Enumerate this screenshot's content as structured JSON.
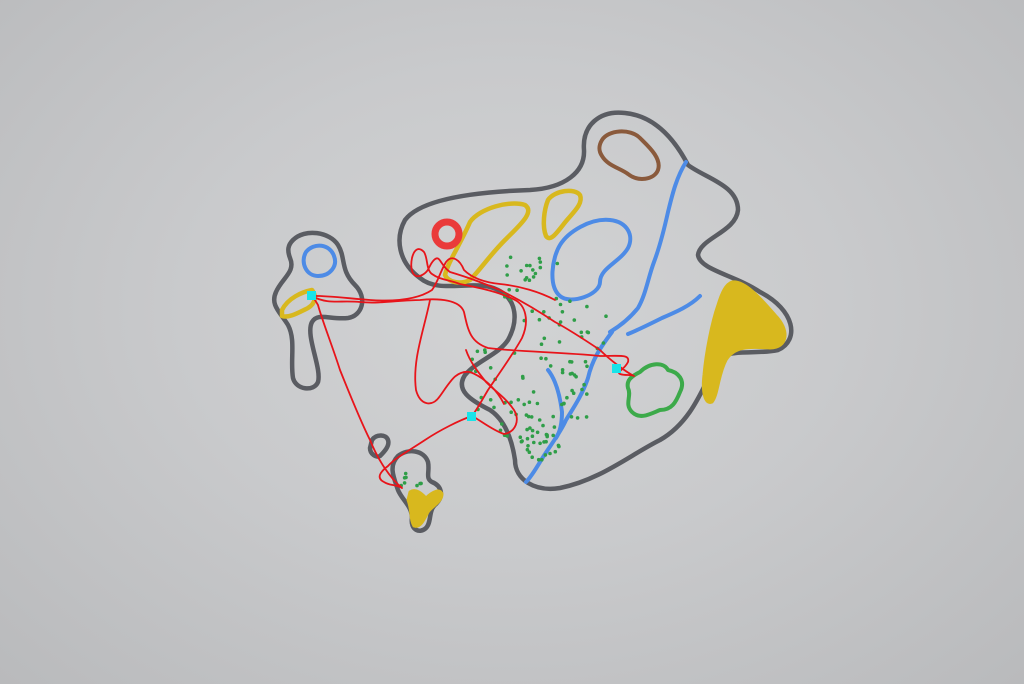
{
  "map": {
    "colors": {
      "background": "#c9cacc",
      "coastline": "#5a5c62",
      "water": "#4d8be6",
      "sand": "#d8b81e",
      "hill": "#8a5a3c",
      "forest": "#2f9e48",
      "route": "#e8141a",
      "waypoint": "#19e3e8",
      "landmark": "#ea3a3a"
    },
    "features": [
      "main-island",
      "west-islet",
      "south-islet",
      "rock",
      "hill",
      "lake",
      "rivers",
      "sand-areas",
      "forest-dots",
      "grassy-patch",
      "red-ring-landmark"
    ],
    "waypoint_count": 3
  }
}
